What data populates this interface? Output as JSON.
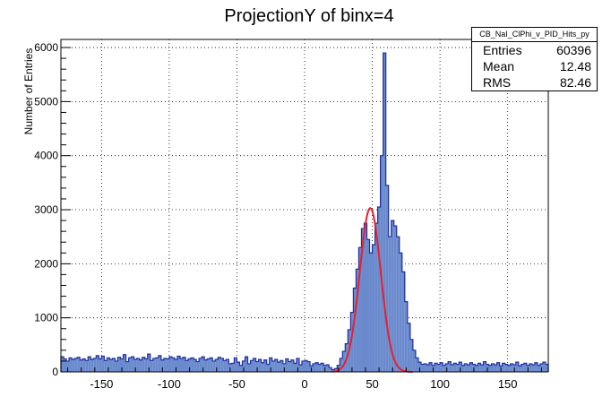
{
  "chart_data": {
    "type": "bar",
    "title": "ProjectionY of binx=4",
    "ylabel": "Number of Entries",
    "xlabel": "",
    "xlim": [
      -180,
      180
    ],
    "ylim": [
      0,
      6150
    ],
    "grid": true,
    "x_ticks": [
      -150,
      -100,
      -50,
      0,
      50,
      100,
      150
    ],
    "y_ticks": [
      0,
      1000,
      2000,
      3000,
      4000,
      5000,
      6000
    ],
    "x_tick_labels": [
      "-150",
      "-100",
      "-50",
      "0",
      "50",
      "100",
      "150"
    ],
    "y_tick_labels": [
      "0",
      "1000",
      "2000",
      "3000",
      "4000",
      "5000",
      "6000"
    ],
    "bin_width": 2,
    "series": [
      {
        "values": [
          280,
          240,
          200,
          260,
          230,
          250,
          270,
          220,
          240,
          210,
          280,
          230,
          250,
          300,
          240,
          290,
          210,
          260,
          230,
          250,
          200,
          270,
          240,
          320,
          190,
          260,
          280,
          230,
          250,
          220,
          270,
          240,
          330,
          210,
          250,
          260,
          300,
          220,
          250,
          240,
          280,
          260,
          230,
          290,
          250,
          270,
          210,
          240,
          260,
          230,
          190,
          250,
          280,
          220,
          240,
          260,
          200,
          230,
          270,
          250,
          210,
          230,
          150,
          160,
          260,
          180,
          120,
          200,
          280,
          150,
          210,
          250,
          190,
          230,
          170,
          220,
          140,
          260,
          200,
          230,
          180,
          210,
          150,
          240,
          190,
          220,
          160,
          250,
          130,
          200,
          210,
          190,
          110,
          150,
          170,
          140,
          160,
          120,
          130,
          80,
          40,
          60,
          120,
          250,
          380,
          520,
          780,
          1100,
          1550,
          1900,
          2300,
          2650,
          2750,
          2450,
          2200,
          2350,
          2750,
          3050,
          4000,
          5900,
          3450,
          2500,
          2800,
          2700,
          2500,
          2200,
          1850,
          1300,
          900,
          600,
          400,
          260,
          180,
          140,
          150,
          130,
          170,
          120,
          160,
          140,
          170,
          120,
          150,
          190,
          130,
          160,
          140,
          180,
          120,
          150,
          130,
          170,
          140,
          120,
          160,
          130,
          190,
          140,
          120,
          150,
          130,
          170,
          110,
          160,
          140,
          120,
          150,
          130,
          180,
          110,
          140,
          160,
          120,
          150,
          130,
          170,
          120,
          150,
          180,
          140
        ]
      }
    ],
    "fit": {
      "type": "gaussian",
      "peak": 3030,
      "mean": 48.5,
      "sigma": 7.8,
      "range": [
        20,
        80
      ]
    },
    "colors": {
      "fill": "#6a8acd",
      "line": "#1f2fa0",
      "fit": "#e8202a"
    }
  },
  "stats": {
    "name": "CB_NaI_ClPhi_v_PID_Hits_py",
    "rows": [
      {
        "label": "Entries",
        "value": "60396"
      },
      {
        "label": "Mean",
        "value": "12.48"
      },
      {
        "label": "RMS",
        "value": "82.46"
      }
    ]
  }
}
